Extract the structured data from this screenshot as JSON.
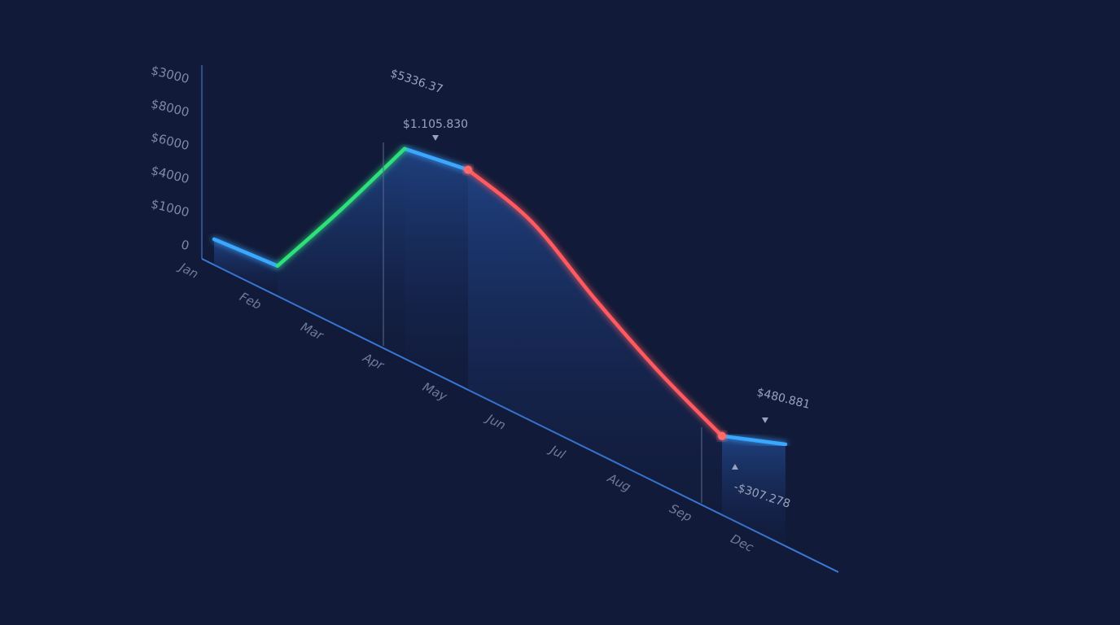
{
  "chart_data": {
    "type": "line",
    "y_labels": [
      "$3000",
      "$8000",
      "$6000",
      "$4000",
      "$1000",
      "0"
    ],
    "categories": [
      "Jan",
      "Feb",
      "Mar",
      "Apr",
      "May",
      "Jun",
      "Jul",
      "Aug",
      "Sep",
      "Dec"
    ],
    "series": [
      {
        "color": "#3aa8ff",
        "values": [
          500,
          590,
          null,
          4100,
          4300,
          null,
          null,
          null,
          1550,
          2000
        ]
      },
      {
        "color": "#2fe07a",
        "values": [
          null,
          590,
          2300,
          4100,
          null,
          null,
          null,
          null,
          null,
          null
        ]
      },
      {
        "color": "#ff5a5f",
        "values": [
          null,
          null,
          null,
          null,
          4300,
          3900,
          3000,
          2200,
          1550,
          null
        ]
      }
    ],
    "ylim": [
      0,
      6000
    ],
    "annotations": [
      {
        "text": "$5336.37",
        "color": "#2fe07a"
      },
      {
        "text": "$1.105.830",
        "color": "#9aa3bd"
      },
      {
        "text": "$480.881",
        "color": "#9aa3bd"
      },
      {
        "text": "-$307.278",
        "color": "#9aa3bd"
      }
    ]
  }
}
